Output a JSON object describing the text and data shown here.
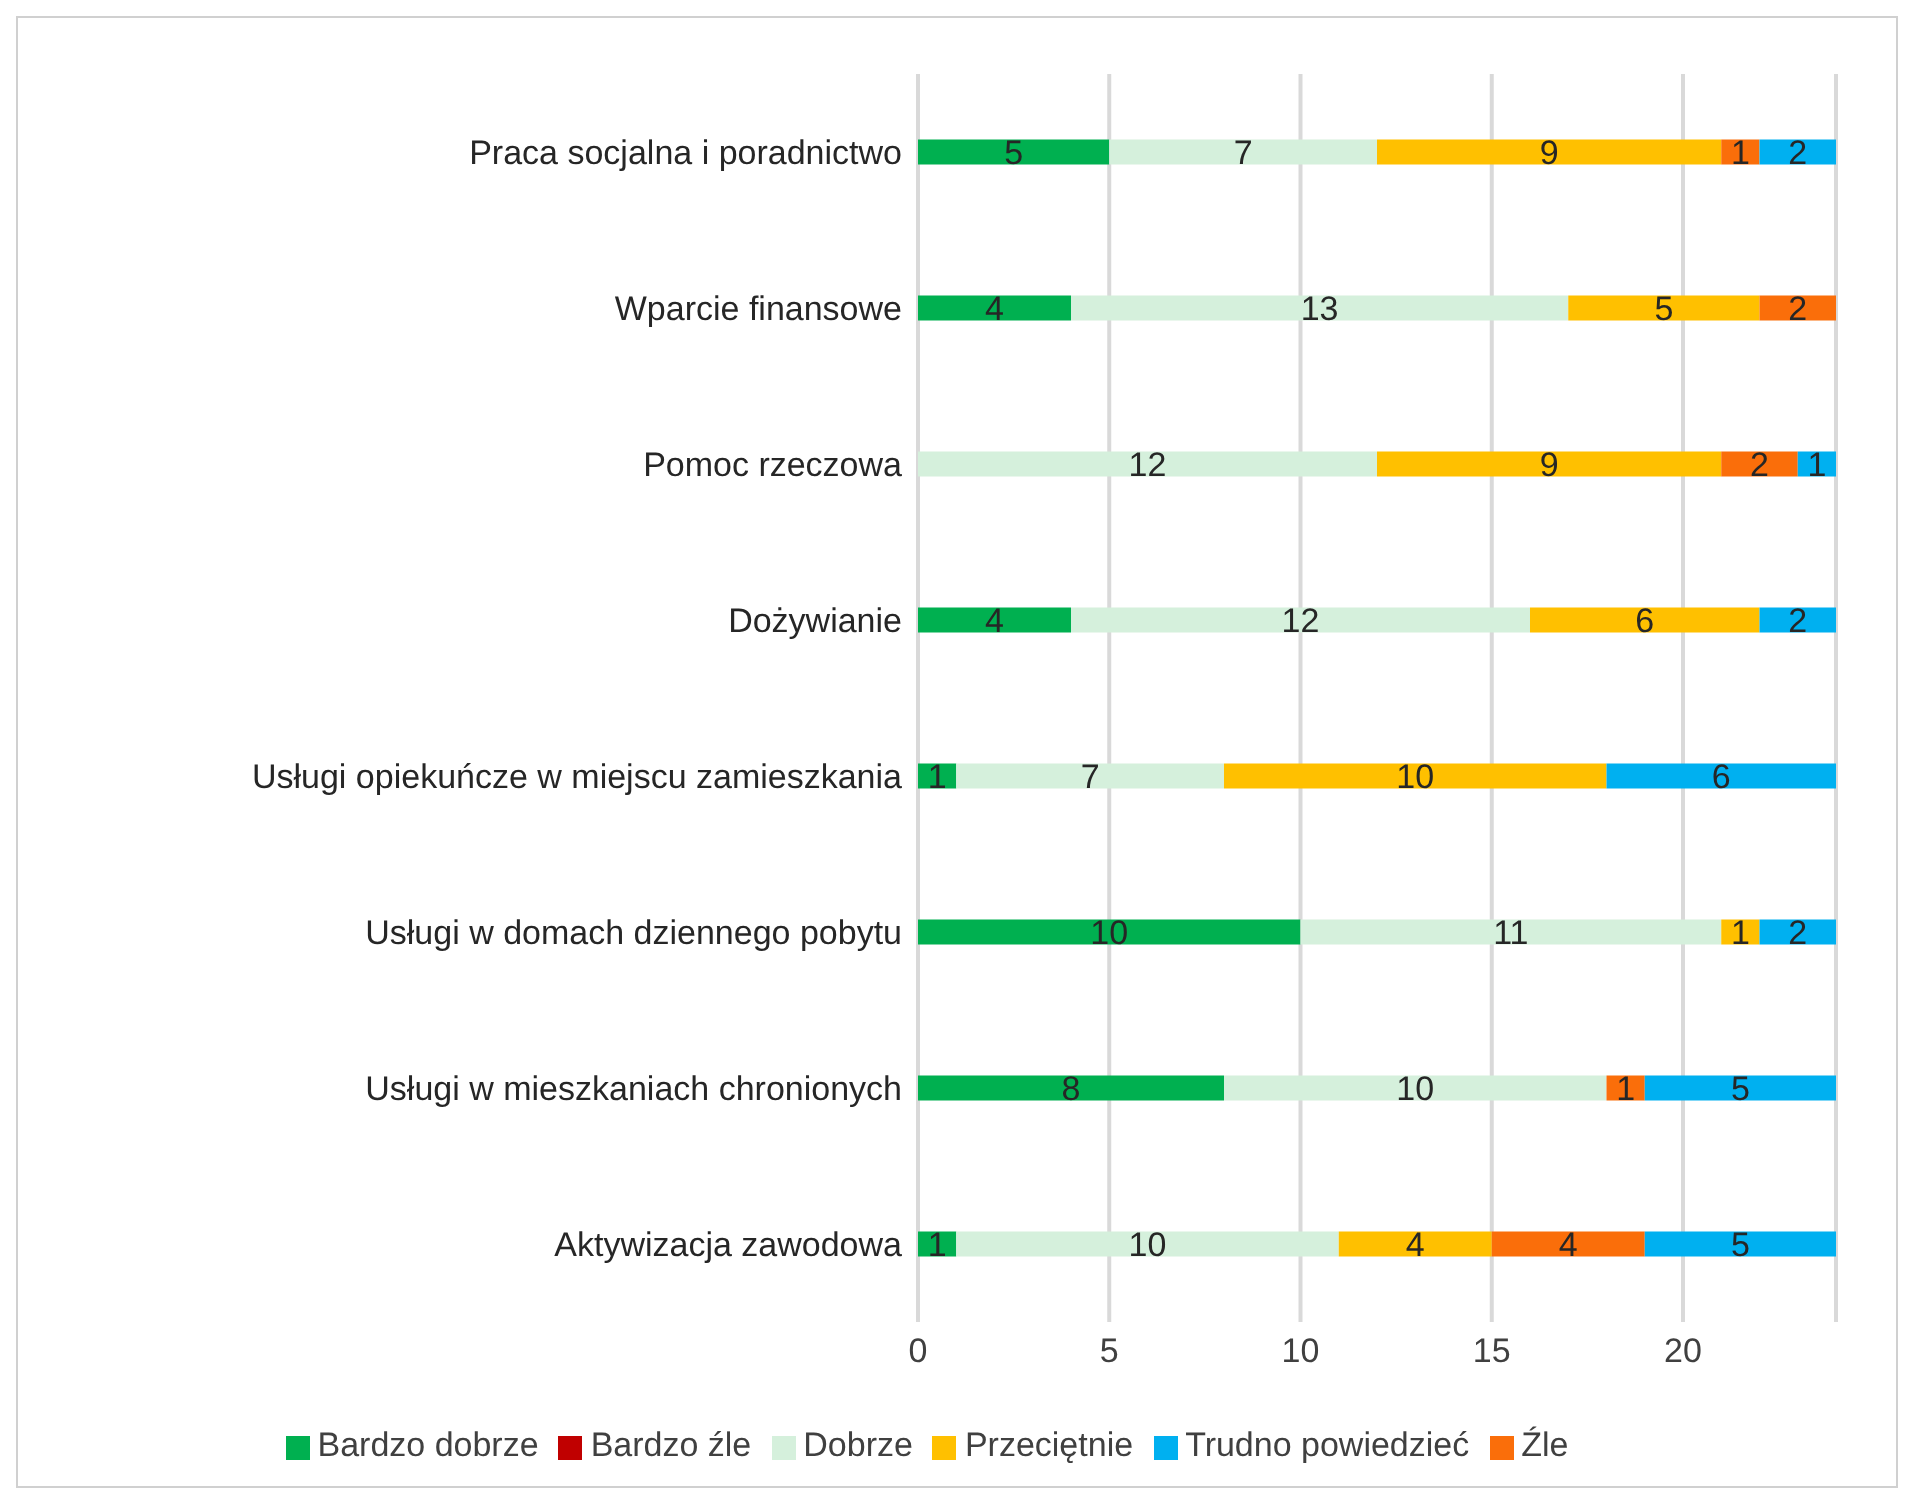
{
  "chart_data": {
    "type": "bar",
    "orientation": "horizontal",
    "stacked": true,
    "data_labels": true,
    "grid": "x",
    "legend": "bottom",
    "categories": [
      "Praca socjalna i poradnictwo",
      "Wparcie finansowe",
      "Pomoc rzeczowa",
      "Dożywianie",
      "Usługi opiekuńcze w miejscu zamieszkania",
      "Usługi w domach dziennego pobytu",
      "Usługi w mieszkaniach chronionych",
      "Aktywizacja zawodowa"
    ],
    "xlim": [
      0,
      24
    ],
    "xticks": [
      0,
      5,
      10,
      15,
      20
    ],
    "series": [
      {
        "name": "Bardzo dobrze",
        "color": "#00b050",
        "values": [
          5,
          4,
          null,
          4,
          1,
          10,
          8,
          1
        ]
      },
      {
        "name": "Dobrze",
        "color": "#d5f0dc",
        "values": [
          7,
          13,
          12,
          12,
          7,
          11,
          10,
          10
        ]
      },
      {
        "name": "Przeciętnie",
        "color": "#ffc000",
        "values": [
          9,
          5,
          9,
          6,
          10,
          1,
          null,
          4
        ]
      },
      {
        "name": "Źle",
        "color": "#fa6e0a",
        "values": [
          1,
          2,
          2,
          null,
          null,
          null,
          1,
          4
        ]
      },
      {
        "name": "Bardzo źle",
        "color": "#c00000",
        "values": [
          null,
          null,
          null,
          null,
          null,
          null,
          null,
          null
        ]
      },
      {
        "name": "Trudno powiedzieć",
        "color": "#00b0f0",
        "values": [
          2,
          null,
          1,
          2,
          6,
          2,
          5,
          5
        ]
      }
    ]
  }
}
